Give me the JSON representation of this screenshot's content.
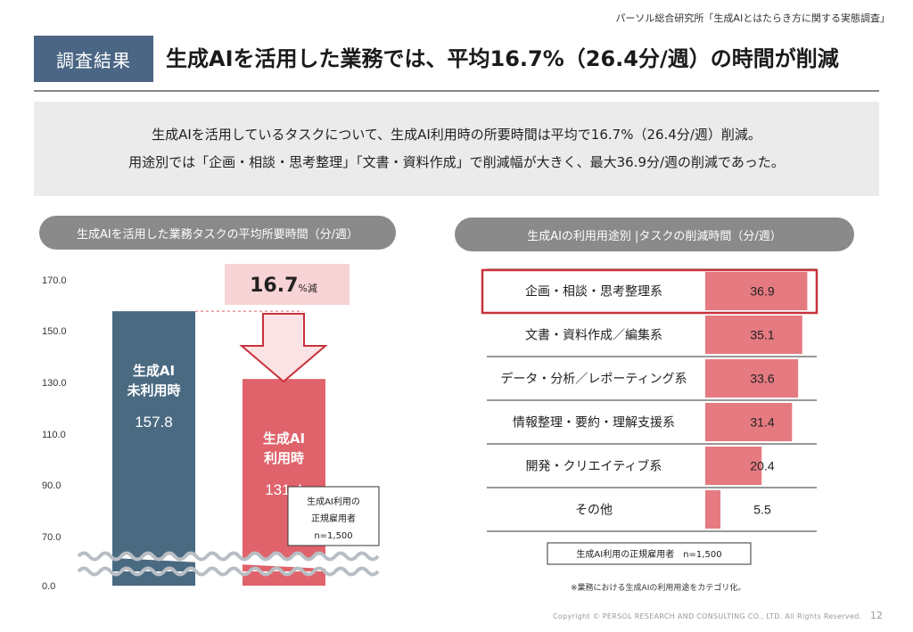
{
  "source": "パーソル総合研究所「生成AIとはたらき方に関する実態調査」",
  "badge": "調査結果",
  "title": "生成AIを活用した業務では、平均16.7%（26.4分/週）の時間が削減",
  "summary": {
    "line1": "生成AIを活用しているタスクについて、生成AI利用時の所要時間は平均で16.7%（26.4分/週）削減。",
    "line2": "用途別では「企画・相談・思考整理」「文書・資料作成」で削減幅が大きく、最大36.9分/週の削減であった。"
  },
  "chart_data": [
    {
      "type": "bar",
      "title": "生成AIを活用した業務タスクの平均所要時間（分/週）",
      "y_ticks": [
        "170.0",
        "150.0",
        "130.0",
        "110.0",
        "90.0",
        "70.0",
        "0.0"
      ],
      "ylim": [
        70,
        170
      ],
      "axis_break": true,
      "categories": [
        "生成AI\n未利用時",
        "生成AI\n利用時"
      ],
      "values": [
        157.8,
        131.4
      ],
      "value_labels": [
        "157.8",
        "131.4"
      ],
      "colors": [
        "#4a6a82",
        "#e0636b"
      ],
      "reduction_pct": "16.7",
      "reduction_suffix": "%減",
      "sample_note": [
        "生成AI利用の",
        "正規雇用者",
        "n=1,500"
      ]
    },
    {
      "type": "bar",
      "orientation": "horizontal",
      "title": "生成AIの利用用途別 |タスクの削減時間（分/週）",
      "categories": [
        "企画・相談・思考整理系",
        "文書・資料作成／編集系",
        "データ・分析／レポーティング系",
        "情報整理・要約・理解支援系",
        "開発・クリエイティブ系",
        "その他"
      ],
      "values": [
        36.9,
        35.1,
        33.6,
        31.4,
        20.4,
        5.5
      ],
      "value_labels": [
        "36.9",
        "35.1",
        "33.6",
        "31.4",
        "20.4",
        "5.5"
      ],
      "highlight_index": 0,
      "color": "#e0636b",
      "highlight_border": "#c8323c",
      "sample_note": "生成AI利用の正規雇用者　n=1,500"
    }
  ],
  "note": "※業務における生成AIの利用用途をカテゴリ化。",
  "copyright": "Copyright © PERSOL RESEARCH AND CONSULTING CO., LTD. All Rights Reserved.",
  "page_number": "12"
}
